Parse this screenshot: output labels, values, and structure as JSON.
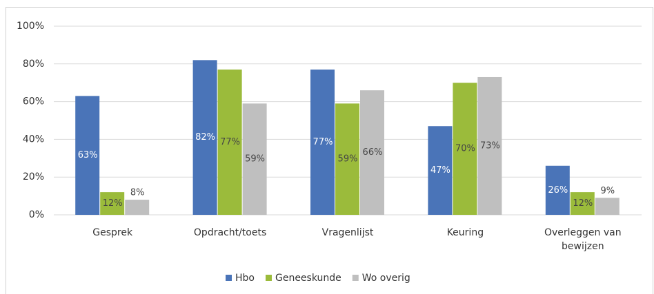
{
  "chart_data": {
    "type": "bar",
    "categories": [
      "Gesprek",
      "Opdracht/toets",
      "Vragenlijst",
      "Keuring",
      "Overleggen van bewijzen"
    ],
    "series": [
      {
        "name": "Hbo",
        "color": "#4a74b8",
        "values": [
          63,
          82,
          77,
          47,
          26
        ],
        "value_labels": [
          "63%",
          "82%",
          "77%",
          "47%",
          "26%"
        ]
      },
      {
        "name": "Geneeskunde",
        "color": "#9bbb3b",
        "values": [
          12,
          77,
          59,
          70,
          12
        ],
        "value_labels": [
          "12%",
          "77%",
          "59%",
          "70%",
          "12%"
        ]
      },
      {
        "name": "Wo overig",
        "color": "#bfbfbf",
        "values": [
          8,
          59,
          66,
          73,
          9
        ],
        "value_labels": [
          "8%",
          "59%",
          "66%",
          "73%",
          "9%"
        ]
      }
    ],
    "ylim": [
      0,
      100
    ],
    "yticks": [
      {
        "value": 0,
        "label": "0%"
      },
      {
        "value": 20,
        "label": "20%"
      },
      {
        "value": 40,
        "label": "40%"
      },
      {
        "value": 60,
        "label": "60%"
      },
      {
        "value": 80,
        "label": "80%"
      },
      {
        "value": 100,
        "label": "100%"
      }
    ],
    "grid": true,
    "legend": "bottom"
  }
}
